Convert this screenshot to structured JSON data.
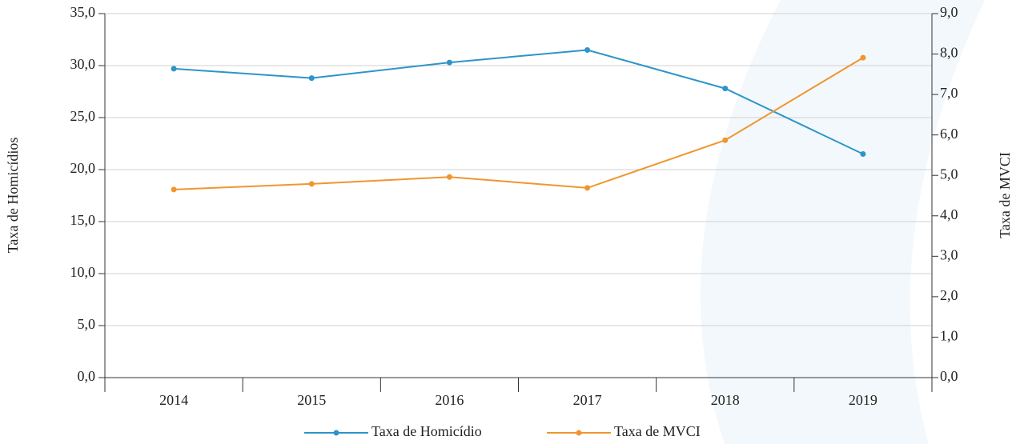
{
  "chart_data": {
    "type": "line",
    "categories": [
      "2014",
      "2015",
      "2016",
      "2017",
      "2018",
      "2019"
    ],
    "series": [
      {
        "name": "Taxa de Homicídio",
        "color": "#2e94c9",
        "values": [
          29.7,
          28.8,
          30.3,
          31.5,
          27.8,
          21.5
        ]
      },
      {
        "name": "Taxa de MVCI",
        "color": "#f0962e",
        "axis": "y2",
        "values": [
          4.65,
          4.79,
          4.96,
          4.69,
          5.87,
          7.91
        ]
      }
    ],
    "ylabel": "Taxa de Homicídios",
    "y2label": "Taxa de MVCI",
    "ylim": [
      0,
      35
    ],
    "yticks": [
      {
        "value": 0,
        "label": "0,0"
      },
      {
        "value": 5,
        "label": "5,0"
      },
      {
        "value": 10,
        "label": "10,0"
      },
      {
        "value": 15,
        "label": "15,0"
      },
      {
        "value": 20,
        "label": "20,0"
      },
      {
        "value": 25,
        "label": "25,0"
      },
      {
        "value": 30,
        "label": "30,0"
      },
      {
        "value": 35,
        "label": "35,0"
      }
    ],
    "y2lim": [
      0,
      9
    ],
    "y2ticks": [
      {
        "value": 0,
        "label": "0,0"
      },
      {
        "value": 1,
        "label": "1,0"
      },
      {
        "value": 2,
        "label": "2,0"
      },
      {
        "value": 3,
        "label": "3,0"
      },
      {
        "value": 4,
        "label": "4,0"
      },
      {
        "value": 5,
        "label": "5,0"
      },
      {
        "value": 6,
        "label": "6,0"
      },
      {
        "value": 7,
        "label": "7,0"
      },
      {
        "value": 8,
        "label": "8,0"
      },
      {
        "value": 9,
        "label": "9,0"
      }
    ],
    "grid": true,
    "legend": "bottom"
  }
}
